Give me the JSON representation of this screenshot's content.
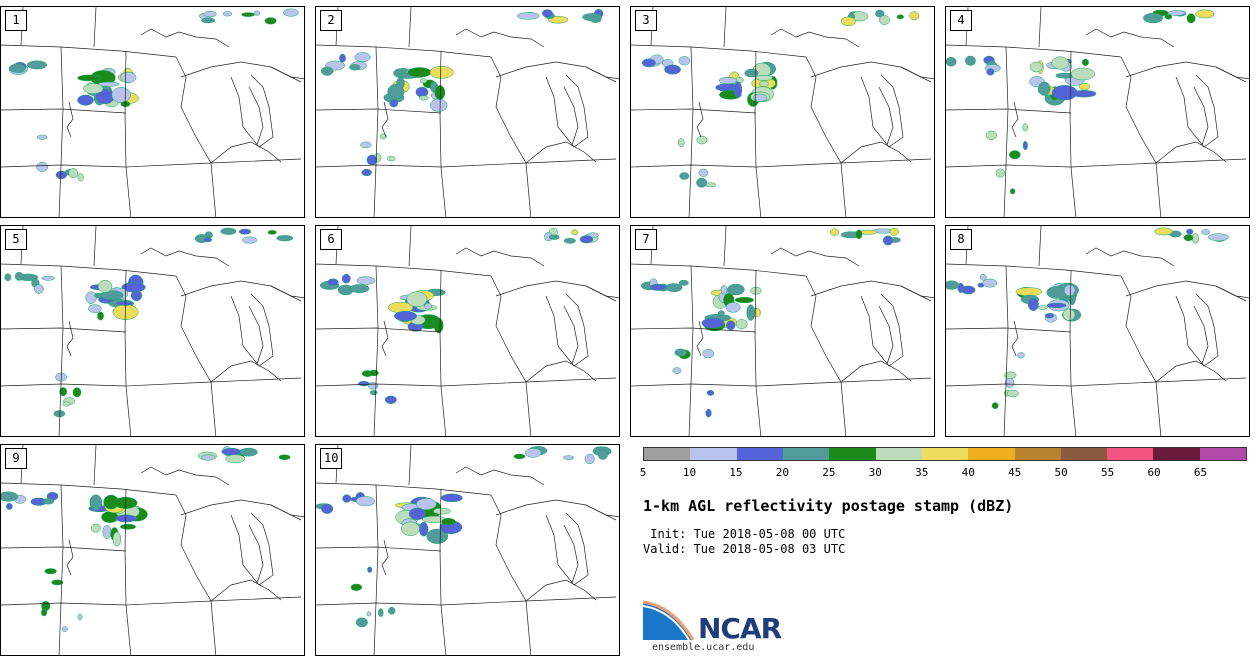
{
  "panels": [
    {
      "label": "1"
    },
    {
      "label": "2"
    },
    {
      "label": "3"
    },
    {
      "label": "4"
    },
    {
      "label": "5"
    },
    {
      "label": "6"
    },
    {
      "label": "7"
    },
    {
      "label": "8"
    },
    {
      "label": "9"
    },
    {
      "label": "10"
    }
  ],
  "colorbar": {
    "colors": [
      "#a0a0a0",
      "#b8c4ec",
      "#5563d8",
      "#519b9b",
      "#1a8a1a",
      "#bcdcbc",
      "#eedd5c",
      "#eeb020",
      "#b88330",
      "#8c5a40",
      "#f55580",
      "#6a1a3a",
      "#b04aa8"
    ],
    "ticks": [
      "5",
      "10",
      "15",
      "20",
      "25",
      "30",
      "35",
      "40",
      "45",
      "50",
      "55",
      "60",
      "65"
    ]
  },
  "title": "1-km AGL reflectivity postage stamp (dBZ)",
  "init": " Init: Tue 2018-05-08 00 UTC",
  "valid": "Valid: Tue 2018-05-08 03 UTC",
  "logo": {
    "text": "NCAR",
    "url": "ensemble.ucar.edu"
  }
}
